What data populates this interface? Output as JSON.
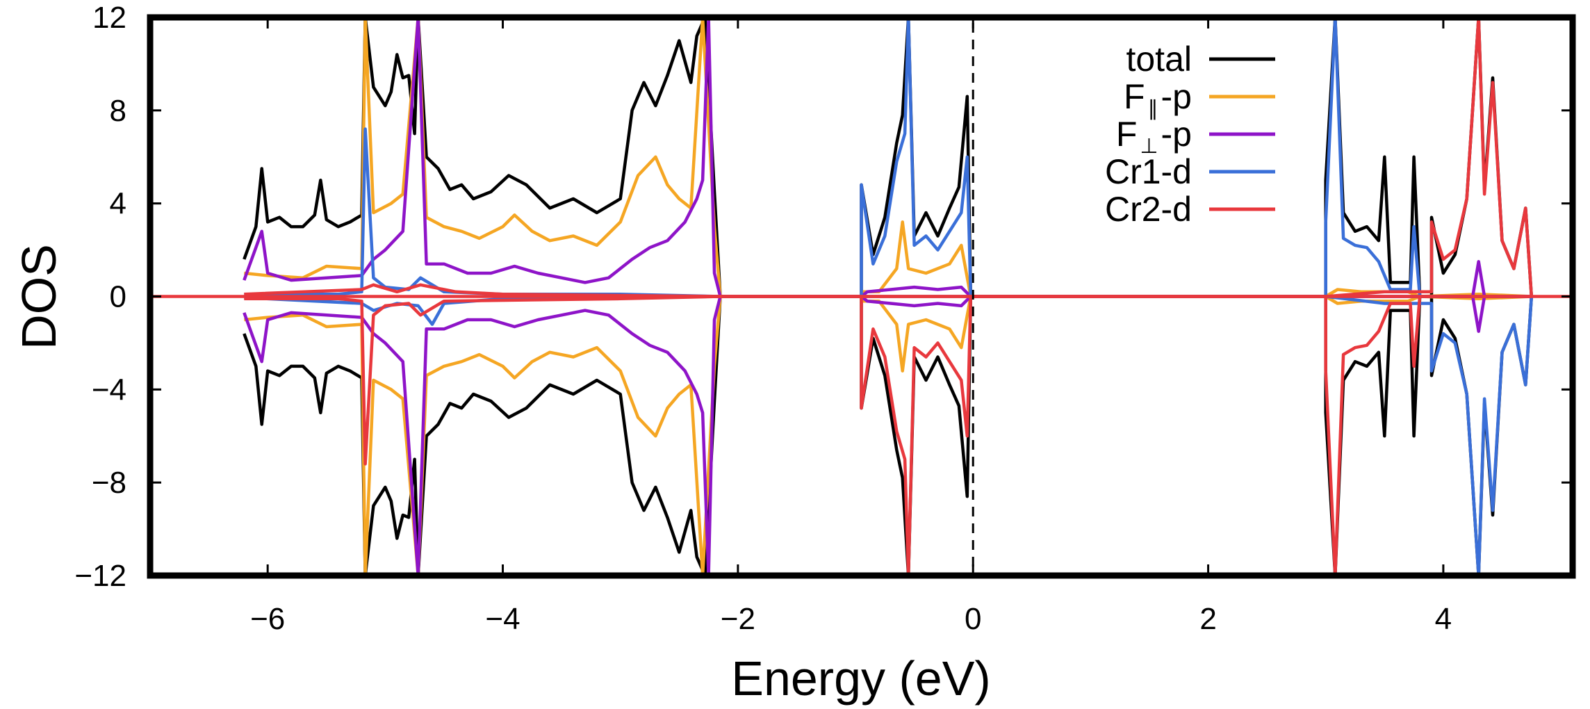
{
  "chart_data": {
    "type": "line",
    "title": "",
    "xlabel": "Energy (eV)",
    "ylabel": "DOS",
    "xlim": [
      -7.0,
      5.1
    ],
    "ylim": [
      -12,
      12
    ],
    "xticks": [
      -6,
      -4,
      -2,
      0,
      2,
      4
    ],
    "yticks": [
      -12,
      -8,
      -4,
      0,
      4,
      8,
      12
    ],
    "xtick_labels": [
      "−6",
      "−4",
      "−2",
      "0",
      "2",
      "4"
    ],
    "ytick_labels": [
      "−12",
      "−8",
      "−4",
      "0",
      "4",
      "8",
      "12"
    ],
    "fermi_level": 0,
    "legend_position": "top-right",
    "series": [
      {
        "name": "total",
        "label_main": "total",
        "label_sub": "",
        "label_suffix": "",
        "color": "#000000",
        "mirror": true,
        "up": [
          [
            -6.2,
            1.6
          ],
          [
            -6.1,
            3.0
          ],
          [
            -6.05,
            5.5
          ],
          [
            -6.0,
            3.2
          ],
          [
            -5.9,
            3.4
          ],
          [
            -5.8,
            3.0
          ],
          [
            -5.7,
            3.0
          ],
          [
            -5.6,
            3.5
          ],
          [
            -5.55,
            5.0
          ],
          [
            -5.5,
            3.3
          ],
          [
            -5.4,
            3.0
          ],
          [
            -5.3,
            3.2
          ],
          [
            -5.2,
            3.5
          ],
          [
            -5.17,
            12
          ],
          [
            -5.1,
            9.0
          ],
          [
            -5.0,
            8.2
          ],
          [
            -4.95,
            8.8
          ],
          [
            -4.9,
            10.4
          ],
          [
            -4.85,
            9.4
          ],
          [
            -4.8,
            9.5
          ],
          [
            -4.75,
            7.0
          ],
          [
            -4.72,
            12
          ],
          [
            -4.65,
            6.0
          ],
          [
            -4.55,
            5.5
          ],
          [
            -4.45,
            4.6
          ],
          [
            -4.35,
            4.8
          ],
          [
            -4.25,
            4.2
          ],
          [
            -4.1,
            4.5
          ],
          [
            -3.95,
            5.2
          ],
          [
            -3.8,
            4.8
          ],
          [
            -3.6,
            3.8
          ],
          [
            -3.4,
            4.2
          ],
          [
            -3.2,
            3.6
          ],
          [
            -3.0,
            4.2
          ],
          [
            -2.9,
            8.0
          ],
          [
            -2.8,
            9.2
          ],
          [
            -2.7,
            8.2
          ],
          [
            -2.6,
            9.5
          ],
          [
            -2.5,
            11.0
          ],
          [
            -2.4,
            9.2
          ],
          [
            -2.35,
            11.2
          ],
          [
            -2.28,
            12
          ],
          [
            -2.2,
            4.5
          ],
          [
            -2.15,
            0
          ],
          [
            -0.95,
            0
          ],
          [
            -0.95,
            4.8
          ],
          [
            -0.85,
            1.8
          ],
          [
            -0.75,
            3.4
          ],
          [
            -0.65,
            6.6
          ],
          [
            -0.6,
            7.8
          ],
          [
            -0.55,
            12
          ],
          [
            -0.5,
            2.6
          ],
          [
            -0.4,
            3.6
          ],
          [
            -0.3,
            2.6
          ],
          [
            -0.2,
            3.8
          ],
          [
            -0.12,
            4.7
          ],
          [
            -0.05,
            8.6
          ],
          [
            -0.02,
            0
          ],
          [
            3.0,
            0
          ],
          [
            3.0,
            5.0
          ],
          [
            3.08,
            12
          ],
          [
            3.15,
            3.6
          ],
          [
            3.25,
            2.8
          ],
          [
            3.35,
            3.0
          ],
          [
            3.45,
            2.4
          ],
          [
            3.5,
            6.0
          ],
          [
            3.55,
            0.6
          ],
          [
            3.72,
            0.6
          ],
          [
            3.75,
            6.0
          ],
          [
            3.8,
            0
          ],
          [
            3.9,
            0
          ],
          [
            3.9,
            3.4
          ],
          [
            4.0,
            1.0
          ],
          [
            4.1,
            1.8
          ],
          [
            4.2,
            4.2
          ],
          [
            4.3,
            12
          ],
          [
            4.35,
            4.6
          ],
          [
            4.42,
            9.4
          ],
          [
            4.5,
            2.4
          ],
          [
            4.6,
            1.2
          ],
          [
            4.7,
            3.8
          ],
          [
            4.75,
            0
          ]
        ]
      },
      {
        "name": "F∥-p",
        "label_main": "F",
        "label_sub": "∥",
        "label_suffix": "-p",
        "color": "#F5A623",
        "mirror": true,
        "up": [
          [
            -6.2,
            1.0
          ],
          [
            -6.0,
            0.9
          ],
          [
            -5.7,
            0.8
          ],
          [
            -5.5,
            1.3
          ],
          [
            -5.2,
            1.2
          ],
          [
            -5.17,
            12
          ],
          [
            -5.1,
            3.6
          ],
          [
            -4.95,
            4.0
          ],
          [
            -4.85,
            4.4
          ],
          [
            -4.72,
            12
          ],
          [
            -4.65,
            3.4
          ],
          [
            -4.5,
            3.0
          ],
          [
            -4.35,
            2.8
          ],
          [
            -4.2,
            2.5
          ],
          [
            -4.0,
            3.0
          ],
          [
            -3.9,
            3.5
          ],
          [
            -3.75,
            2.8
          ],
          [
            -3.6,
            2.4
          ],
          [
            -3.4,
            2.6
          ],
          [
            -3.2,
            2.2
          ],
          [
            -3.0,
            3.2
          ],
          [
            -2.85,
            5.2
          ],
          [
            -2.7,
            6.0
          ],
          [
            -2.6,
            4.8
          ],
          [
            -2.5,
            4.2
          ],
          [
            -2.4,
            3.8
          ],
          [
            -2.3,
            12
          ],
          [
            -2.2,
            3.0
          ],
          [
            -2.15,
            0
          ],
          [
            -0.95,
            0
          ],
          [
            -0.95,
            0.2
          ],
          [
            -0.8,
            0.2
          ],
          [
            -0.65,
            1.2
          ],
          [
            -0.6,
            3.2
          ],
          [
            -0.55,
            1.2
          ],
          [
            -0.4,
            1.0
          ],
          [
            -0.2,
            1.4
          ],
          [
            -0.1,
            2.2
          ],
          [
            -0.02,
            0
          ],
          [
            3.0,
            0
          ],
          [
            3.1,
            0.3
          ],
          [
            3.3,
            0.2
          ],
          [
            3.7,
            0.2
          ],
          [
            3.8,
            0
          ],
          [
            4.3,
            0.1
          ],
          [
            4.75,
            0
          ]
        ]
      },
      {
        "name": "F⊥-p",
        "label_main": "F",
        "label_sub": "⊥",
        "label_suffix": "-p",
        "color": "#8E14C8",
        "mirror": true,
        "up": [
          [
            -6.2,
            0.7
          ],
          [
            -6.05,
            2.8
          ],
          [
            -6.0,
            1.0
          ],
          [
            -5.8,
            0.7
          ],
          [
            -5.5,
            0.8
          ],
          [
            -5.2,
            0.9
          ],
          [
            -5.1,
            1.6
          ],
          [
            -5.0,
            2.0
          ],
          [
            -4.85,
            2.8
          ],
          [
            -4.72,
            12
          ],
          [
            -4.65,
            1.4
          ],
          [
            -4.5,
            1.4
          ],
          [
            -4.3,
            1.0
          ],
          [
            -4.1,
            1.0
          ],
          [
            -3.9,
            1.3
          ],
          [
            -3.7,
            1.0
          ],
          [
            -3.5,
            0.8
          ],
          [
            -3.3,
            0.6
          ],
          [
            -3.1,
            0.8
          ],
          [
            -2.9,
            1.6
          ],
          [
            -2.75,
            2.1
          ],
          [
            -2.6,
            2.4
          ],
          [
            -2.45,
            3.2
          ],
          [
            -2.35,
            4.2
          ],
          [
            -2.3,
            5.0
          ],
          [
            -2.25,
            12
          ],
          [
            -2.2,
            1.0
          ],
          [
            -2.15,
            0
          ],
          [
            -0.95,
            0
          ],
          [
            -0.9,
            0.2
          ],
          [
            -0.7,
            0.3
          ],
          [
            -0.5,
            0.4
          ],
          [
            -0.3,
            0.3
          ],
          [
            -0.1,
            0.4
          ],
          [
            -0.02,
            0
          ],
          [
            4.25,
            0
          ],
          [
            4.3,
            1.5
          ],
          [
            4.35,
            0
          ],
          [
            4.75,
            0
          ]
        ]
      },
      {
        "name": "Cr1-d",
        "label_main": "Cr1-d",
        "label_sub": "",
        "label_suffix": "",
        "color": "#3A6FD8",
        "mirror": false,
        "up": [
          [
            -6.2,
            0.1
          ],
          [
            -5.4,
            0.1
          ],
          [
            -5.2,
            0.2
          ],
          [
            -5.17,
            7.2
          ],
          [
            -5.1,
            0.8
          ],
          [
            -5.0,
            0.4
          ],
          [
            -4.8,
            0.3
          ],
          [
            -4.7,
            0.8
          ],
          [
            -4.5,
            0.2
          ],
          [
            -4.0,
            0.1
          ],
          [
            -3.0,
            0.1
          ],
          [
            -2.15,
            0
          ],
          [
            -0.95,
            0
          ],
          [
            -0.95,
            4.8
          ],
          [
            -0.85,
            1.4
          ],
          [
            -0.75,
            2.6
          ],
          [
            -0.65,
            5.8
          ],
          [
            -0.58,
            7.0
          ],
          [
            -0.55,
            12
          ],
          [
            -0.5,
            2.2
          ],
          [
            -0.4,
            2.6
          ],
          [
            -0.3,
            2.0
          ],
          [
            -0.2,
            2.8
          ],
          [
            -0.1,
            3.6
          ],
          [
            -0.05,
            6.0
          ],
          [
            -0.02,
            0
          ],
          [
            3.0,
            0
          ],
          [
            3.0,
            3.2
          ],
          [
            3.08,
            12
          ],
          [
            3.15,
            2.5
          ],
          [
            3.25,
            2.2
          ],
          [
            3.35,
            2.1
          ],
          [
            3.45,
            1.5
          ],
          [
            3.55,
            0.3
          ],
          [
            3.72,
            0.3
          ],
          [
            3.75,
            3.0
          ],
          [
            3.8,
            0
          ],
          [
            4.75,
            0
          ]
        ],
        "down": [
          [
            -6.2,
            -0.05
          ],
          [
            -5.2,
            -0.3
          ],
          [
            -5.1,
            -0.6
          ],
          [
            -4.9,
            -0.3
          ],
          [
            -4.72,
            -0.4
          ],
          [
            -4.6,
            -1.2
          ],
          [
            -4.5,
            -0.3
          ],
          [
            -4.0,
            -0.1
          ],
          [
            -2.15,
            0
          ],
          [
            3.0,
            0
          ],
          [
            3.5,
            -0.3
          ],
          [
            3.9,
            -0.3
          ],
          [
            3.9,
            -3.2
          ],
          [
            4.0,
            -1.6
          ],
          [
            4.1,
            -2.0
          ],
          [
            4.2,
            -4.2
          ],
          [
            4.3,
            -12
          ],
          [
            4.35,
            -4.4
          ],
          [
            4.42,
            -9.2
          ],
          [
            4.5,
            -2.4
          ],
          [
            4.6,
            -1.2
          ],
          [
            4.7,
            -3.8
          ],
          [
            4.75,
            0
          ]
        ]
      },
      {
        "name": "Cr2-d",
        "label_main": "Cr2-d",
        "label_sub": "",
        "label_suffix": "",
        "color": "#E8383D",
        "mirror": false,
        "up": [
          [
            -6.2,
            0.1
          ],
          [
            -5.2,
            0.3
          ],
          [
            -5.1,
            0.5
          ],
          [
            -4.9,
            0.2
          ],
          [
            -4.7,
            0.5
          ],
          [
            -4.4,
            0.2
          ],
          [
            -4.0,
            0.1
          ],
          [
            -2.15,
            0
          ],
          [
            3.0,
            0
          ],
          [
            3.5,
            0.2
          ],
          [
            3.9,
            0.2
          ],
          [
            3.9,
            3.2
          ],
          [
            4.0,
            1.6
          ],
          [
            4.1,
            2.0
          ],
          [
            4.2,
            4.2
          ],
          [
            4.3,
            12
          ],
          [
            4.35,
            4.4
          ],
          [
            4.42,
            9.2
          ],
          [
            4.5,
            2.4
          ],
          [
            4.6,
            1.2
          ],
          [
            4.7,
            3.8
          ],
          [
            4.75,
            0
          ]
        ],
        "down": [
          [
            -6.2,
            -0.1
          ],
          [
            -5.4,
            -0.1
          ],
          [
            -5.2,
            -0.2
          ],
          [
            -5.17,
            -7.2
          ],
          [
            -5.1,
            -0.8
          ],
          [
            -5.0,
            -0.4
          ],
          [
            -4.8,
            -0.3
          ],
          [
            -4.7,
            -0.8
          ],
          [
            -4.5,
            -0.2
          ],
          [
            -3.0,
            -0.1
          ],
          [
            -2.15,
            0
          ],
          [
            -0.95,
            0
          ],
          [
            -0.95,
            -4.8
          ],
          [
            -0.85,
            -1.4
          ],
          [
            -0.75,
            -2.6
          ],
          [
            -0.65,
            -5.8
          ],
          [
            -0.58,
            -7.0
          ],
          [
            -0.55,
            -12
          ],
          [
            -0.5,
            -2.2
          ],
          [
            -0.4,
            -2.6
          ],
          [
            -0.3,
            -2.0
          ],
          [
            -0.2,
            -2.8
          ],
          [
            -0.1,
            -3.6
          ],
          [
            -0.05,
            -6.0
          ],
          [
            -0.02,
            0
          ],
          [
            3.0,
            0
          ],
          [
            3.0,
            -3.2
          ],
          [
            3.08,
            -12
          ],
          [
            3.15,
            -2.5
          ],
          [
            3.25,
            -2.2
          ],
          [
            3.35,
            -2.1
          ],
          [
            3.45,
            -1.5
          ],
          [
            3.55,
            -0.3
          ],
          [
            3.72,
            -0.3
          ],
          [
            3.75,
            -3.0
          ],
          [
            3.8,
            0
          ],
          [
            4.75,
            0
          ]
        ]
      }
    ]
  }
}
